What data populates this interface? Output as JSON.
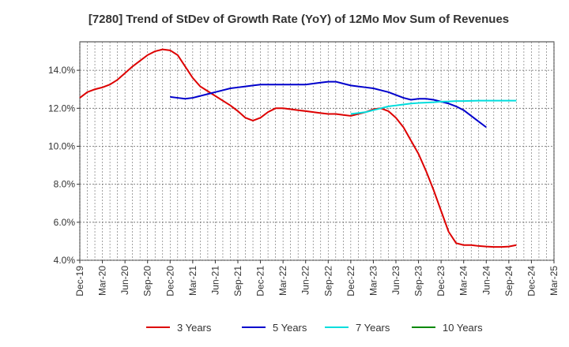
{
  "chart_data": {
    "type": "line",
    "title": "[7280]  Trend of StDev of Growth Rate (YoY) of 12Mo Mov Sum of Revenues",
    "xlabel": "",
    "ylabel": "",
    "ylim": [
      4.0,
      15.5
    ],
    "y_ticks": [
      4.0,
      6.0,
      8.0,
      10.0,
      12.0,
      14.0
    ],
    "y_tick_labels": [
      "4.0%",
      "6.0%",
      "8.0%",
      "10.0%",
      "12.0%",
      "14.0%"
    ],
    "x_tick_labels": [
      "Dec-19",
      "Mar-20",
      "Jun-20",
      "Sep-20",
      "Dec-20",
      "Mar-21",
      "Jun-21",
      "Sep-21",
      "Dec-21",
      "Mar-22",
      "Jun-22",
      "Sep-22",
      "Dec-22",
      "Mar-23",
      "Jun-23",
      "Sep-23",
      "Dec-23",
      "Mar-24",
      "Jun-24",
      "Sep-24",
      "Dec-24",
      "Mar-25"
    ],
    "grid": true,
    "legend_position": "bottom",
    "series": [
      {
        "name": "3 Years",
        "color": "#dd0000",
        "start_index": 0,
        "values": [
          12.55,
          12.85,
          13.0,
          13.1,
          13.25,
          13.5,
          13.85,
          14.2,
          14.5,
          14.8,
          15.0,
          15.1,
          15.05,
          14.8,
          14.2,
          13.6,
          13.15,
          12.9,
          12.65,
          12.4,
          12.15,
          11.85,
          11.5,
          11.35,
          11.5,
          11.8,
          12.0,
          12.0,
          11.95,
          11.9,
          11.85,
          11.8,
          11.75,
          11.7,
          11.7,
          11.65,
          11.6,
          11.7,
          11.8,
          11.95,
          12.0,
          11.85,
          11.5,
          11.0,
          10.3,
          9.6,
          8.7,
          7.7,
          6.6,
          5.5,
          4.9,
          4.8,
          4.8,
          4.75,
          4.72,
          4.7,
          4.7,
          4.72,
          4.8
        ]
      },
      {
        "name": "5 Years",
        "color": "#0000cc",
        "start_index": 12,
        "values": [
          12.6,
          12.55,
          12.5,
          12.55,
          12.65,
          12.75,
          12.85,
          12.95,
          13.05,
          13.1,
          13.15,
          13.2,
          13.25,
          13.25,
          13.25,
          13.25,
          13.25,
          13.25,
          13.25,
          13.3,
          13.35,
          13.4,
          13.4,
          13.3,
          13.2,
          13.15,
          13.1,
          13.05,
          12.95,
          12.85,
          12.7,
          12.55,
          12.45,
          12.5,
          12.5,
          12.45,
          12.35,
          12.25,
          12.1,
          11.9,
          11.6,
          11.3,
          11.0
        ]
      },
      {
        "name": "7 Years",
        "color": "#00dddd",
        "start_index": 36,
        "values": [
          11.7,
          11.75,
          11.8,
          11.9,
          12.0,
          12.1,
          12.15,
          12.2,
          12.25,
          12.28,
          12.3,
          12.32,
          12.35,
          12.36,
          12.38,
          12.38,
          12.39,
          12.4,
          12.4,
          12.4,
          12.4,
          12.4,
          12.4
        ]
      },
      {
        "name": "10 Years",
        "color": "#008800",
        "start_index": 0,
        "values": []
      }
    ]
  }
}
